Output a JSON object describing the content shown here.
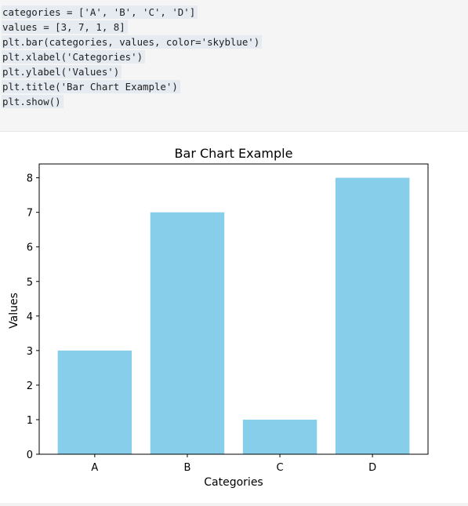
{
  "code_cell": {
    "lines": [
      "categories = ['A', 'B', 'C', 'D']",
      "values = [3, 7, 1, 8]",
      "plt.bar(categories, values, color='skyblue')",
      "plt.xlabel('Categories')",
      "plt.ylabel('Values')",
      "plt.title('Bar Chart Example')",
      "plt.show()"
    ]
  },
  "colors": {
    "bar": "#87ceeb",
    "code_background": "#f5f5f5",
    "line_highlight": "#e6ebf2"
  },
  "chart_data": {
    "type": "bar",
    "title": "Bar Chart Example",
    "xlabel": "Categories",
    "ylabel": "Values",
    "categories": [
      "A",
      "B",
      "C",
      "D"
    ],
    "values": [
      3,
      7,
      1,
      8
    ],
    "ylim": [
      0,
      8.4
    ],
    "yticks": [
      0,
      1,
      2,
      3,
      4,
      5,
      6,
      7,
      8
    ],
    "grid": false,
    "legend": false
  }
}
